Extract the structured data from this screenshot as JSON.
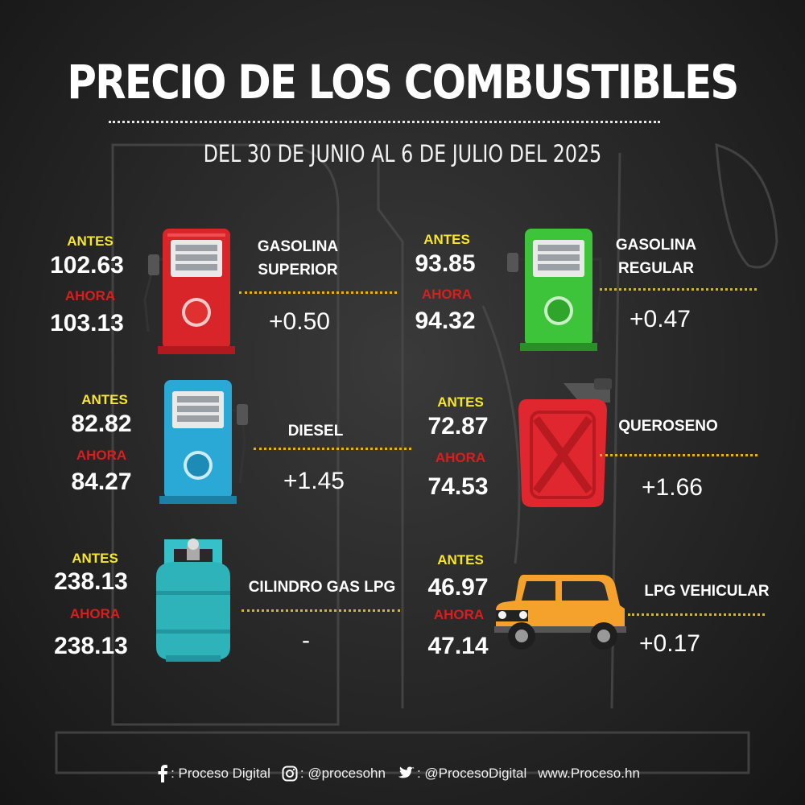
{
  "header": {
    "title": "PRECIO DE LOS COMBUSTIBLES",
    "subtitle": "DEL 30 DE JUNIO AL 6 DE JULIO DEL 2025"
  },
  "labels": {
    "antes": "ANTES",
    "ahora": "AHORA"
  },
  "fuels": [
    {
      "name_line1": "GASOLINA",
      "name_line2": "SUPERIOR",
      "antes": "102.63",
      "ahora": "103.13",
      "diff": "+0.50",
      "icon": "red-fuel-pump-icon"
    },
    {
      "name_line1": "GASOLINA",
      "name_line2": "REGULAR",
      "antes": "93.85",
      "ahora": "94.32",
      "diff": "+0.47",
      "icon": "green-fuel-pump-icon"
    },
    {
      "name_line1": "DIESEL",
      "name_line2": "",
      "antes": "82.82",
      "ahora": "84.27",
      "diff": "+1.45",
      "icon": "blue-fuel-pump-icon"
    },
    {
      "name_line1": "QUEROSENO",
      "name_line2": "",
      "antes": "72.87",
      "ahora": "74.53",
      "diff": "+1.66",
      "icon": "red-jerry-can-icon"
    },
    {
      "name_line1": "CILINDRO GAS LPG",
      "name_line2": "",
      "antes": "238.13",
      "ahora": "238.13",
      "diff": "-",
      "icon": "gas-cylinder-icon"
    },
    {
      "name_line1": "LPG VEHICULAR",
      "name_line2": "",
      "antes": "46.97",
      "ahora": "47.14",
      "diff": "+0.17",
      "icon": "orange-car-icon"
    }
  ],
  "footer": {
    "facebook": ": Proceso Digital",
    "instagram": ": @procesohn",
    "twitter": ": @ProcesoDigital",
    "website": "www.Proceso.hn"
  },
  "colors": {
    "antes": "#f7e62a",
    "ahora": "#d91e1e",
    "separator": "#e0b510",
    "background": "#262626"
  }
}
